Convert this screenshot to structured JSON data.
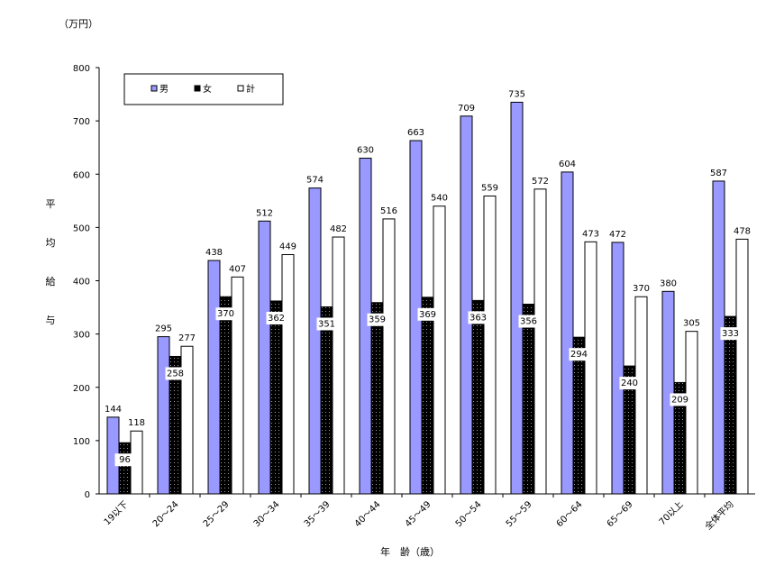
{
  "chart_data": {
    "type": "bar",
    "unit_label": "（万円）",
    "ylabel": "平均給与",
    "xlabel": "年　齢（歳）",
    "ylim": [
      0,
      800
    ],
    "yticks": [
      0,
      100,
      200,
      300,
      400,
      500,
      600,
      700,
      800
    ],
    "categories": [
      "19以下",
      "20～24",
      "25～29",
      "30～34",
      "35～39",
      "40～44",
      "45～49",
      "50～54",
      "55～59",
      "60～64",
      "65～69",
      "70以上",
      "全体平均"
    ],
    "series": [
      {
        "name": "男",
        "color": "#9999ff",
        "values": [
          144,
          295,
          438,
          512,
          574,
          630,
          663,
          709,
          735,
          604,
          472,
          380,
          587
        ]
      },
      {
        "name": "女",
        "color": "#000000",
        "values": [
          96,
          258,
          370,
          362,
          351,
          359,
          369,
          363,
          356,
          294,
          240,
          209,
          333
        ]
      },
      {
        "name": "計",
        "color": "#ffffff",
        "values": [
          118,
          277,
          407,
          449,
          482,
          516,
          540,
          559,
          572,
          473,
          370,
          305,
          478
        ]
      }
    ],
    "legend_position": "top-left",
    "grid": false
  }
}
